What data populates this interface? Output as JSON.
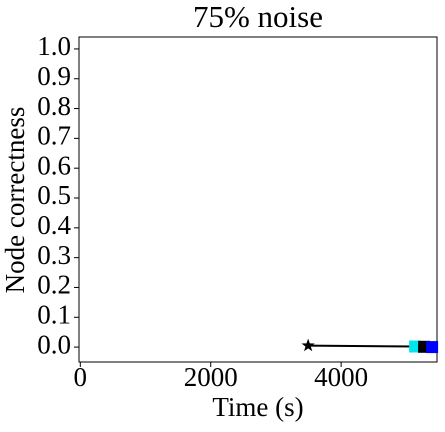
{
  "chart_data": {
    "type": "line",
    "title": "75% noise",
    "x_label": "Time (s)",
    "y_label": "Node correctness",
    "xlim": [
      -20,
      5470
    ],
    "ylim": [
      -0.05,
      1.04
    ],
    "xticks": [
      0,
      2000,
      4000
    ],
    "yticks": [
      {
        "value": 0,
        "label": "0.0"
      },
      {
        "value": 0.1,
        "label": "0.1"
      },
      {
        "value": 0.2,
        "label": "0.2"
      },
      {
        "value": 0.3,
        "label": "0.3"
      },
      {
        "value": 0.4,
        "label": "0.4"
      },
      {
        "value": 0.5,
        "label": "0.5"
      },
      {
        "value": 0.6,
        "label": "0.6"
      },
      {
        "value": 0.7,
        "label": "0.7"
      },
      {
        "value": 0.8,
        "label": "0.8"
      },
      {
        "value": 0.9,
        "label": "0.9"
      },
      {
        "value": 1,
        "label": "1.0"
      }
    ],
    "series": [
      {
        "color": "#000000",
        "marker": "none",
        "x": [
          3494,
          5134,
          5272,
          5395
        ],
        "values": [
          0.005,
          0.002,
          0.001,
          0.0
        ]
      },
      {
        "color": "#000000",
        "marker": "star",
        "x": [
          3494
        ],
        "values": [
          0.005
        ]
      },
      {
        "color": "#00e5ee",
        "marker": "square",
        "x": [
          5134
        ],
        "values": [
          0.002
        ]
      },
      {
        "color": "#000000",
        "marker": "square",
        "x": [
          5272
        ],
        "values": [
          0.001
        ]
      },
      {
        "color": "#0000ff",
        "marker": "square",
        "x": [
          5395
        ],
        "values": [
          0.0
        ]
      }
    ]
  }
}
